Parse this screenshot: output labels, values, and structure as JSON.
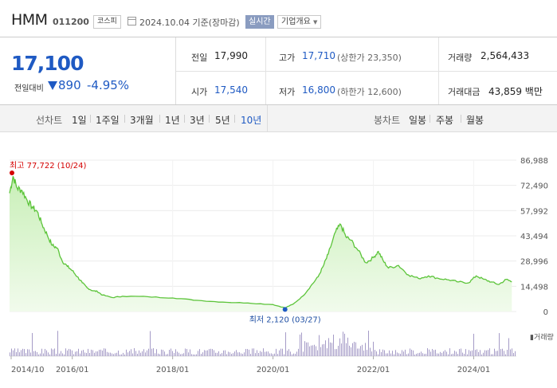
{
  "header": {
    "name": "HMM",
    "code": "011200",
    "market": "코스피",
    "date": "2024.10.04",
    "basis": "기준(장마감)",
    "realtime_label": "실시간",
    "corp_label": "기업개요"
  },
  "summary": {
    "price": "17,100",
    "change_label": "전일대비",
    "change_value": "890",
    "change_pct": "-4.95%",
    "prev_label": "전일",
    "prev": "17,990",
    "high_label": "고가",
    "high": "17,710",
    "upper_limit": "(상한가 23,350)",
    "volume_label": "거래량",
    "volume": "2,564,433",
    "open_label": "시가",
    "open": "17,540",
    "low_label": "저가",
    "low": "16,800",
    "lower_limit": "(하한가 12,600)",
    "amount_label": "거래대금",
    "amount": "43,859 백만"
  },
  "periods": {
    "line_label": "선차트",
    "line_items": [
      "1일",
      "1주일",
      "3개월",
      "1년",
      "3년",
      "5년",
      "10년"
    ],
    "active": "10년",
    "candle_label": "봉차트",
    "candle_items": [
      "일봉",
      "주봉",
      "월봉"
    ]
  },
  "colors": {
    "down": "#1f5ac3",
    "up": "#d40000",
    "line": "#5cc43a",
    "volume": "#a59bc7"
  },
  "chart_data": {
    "type": "area",
    "title": "",
    "y_ticks": [
      "86,988",
      "72,490",
      "57,992",
      "43,494",
      "28,996",
      "14,498",
      "0"
    ],
    "ylim": [
      0,
      86988
    ],
    "x_ticks": [
      "2014/10",
      "2016/01",
      "2018/01",
      "2020/01",
      "2022/01",
      "2024/01"
    ],
    "x_range": [
      "2014/10",
      "2024/10"
    ],
    "series": [
      {
        "values": [
          [
            2014.75,
            68000
          ],
          [
            2014.82,
            77722
          ],
          [
            2014.9,
            71000
          ],
          [
            2015.0,
            69500
          ],
          [
            2015.1,
            64000
          ],
          [
            2015.2,
            60000
          ],
          [
            2015.3,
            57500
          ],
          [
            2015.4,
            50000
          ],
          [
            2015.5,
            44000
          ],
          [
            2015.6,
            38000
          ],
          [
            2015.7,
            36500
          ],
          [
            2015.8,
            29000
          ],
          [
            2015.9,
            26000
          ],
          [
            2016.0,
            23500
          ],
          [
            2016.1,
            20000
          ],
          [
            2016.2,
            16500
          ],
          [
            2016.3,
            13500
          ],
          [
            2016.4,
            12000
          ],
          [
            2016.5,
            11500
          ],
          [
            2016.6,
            9500
          ],
          [
            2016.8,
            8000
          ],
          [
            2017.0,
            8800
          ],
          [
            2017.5,
            8500
          ],
          [
            2018.0,
            7800
          ],
          [
            2018.5,
            6400
          ],
          [
            2019.0,
            5400
          ],
          [
            2019.5,
            4900
          ],
          [
            2020.0,
            4000
          ],
          [
            2020.24,
            2120
          ],
          [
            2020.4,
            4200
          ],
          [
            2020.6,
            9000
          ],
          [
            2020.75,
            14500
          ],
          [
            2020.9,
            20000
          ],
          [
            2021.0,
            26000
          ],
          [
            2021.1,
            33000
          ],
          [
            2021.25,
            46000
          ],
          [
            2021.35,
            50000
          ],
          [
            2021.45,
            43000
          ],
          [
            2021.55,
            41000
          ],
          [
            2021.7,
            35000
          ],
          [
            2021.85,
            28000
          ],
          [
            2022.0,
            31000
          ],
          [
            2022.1,
            34500
          ],
          [
            2022.2,
            29000
          ],
          [
            2022.3,
            25000
          ],
          [
            2022.5,
            26500
          ],
          [
            2022.7,
            21000
          ],
          [
            2022.9,
            19000
          ],
          [
            2023.1,
            20500
          ],
          [
            2023.3,
            19000
          ],
          [
            2023.5,
            18200
          ],
          [
            2023.7,
            17000
          ],
          [
            2023.9,
            16500
          ],
          [
            2024.05,
            20500
          ],
          [
            2024.2,
            18500
          ],
          [
            2024.35,
            17000
          ],
          [
            2024.5,
            15500
          ],
          [
            2024.65,
            18500
          ],
          [
            2024.76,
            17100
          ]
        ]
      }
    ],
    "max_label": "최고 77,722 (10/24)",
    "min_label": "최저 2,120 (03/27)",
    "volume_legend": "거래량",
    "grid": true
  }
}
